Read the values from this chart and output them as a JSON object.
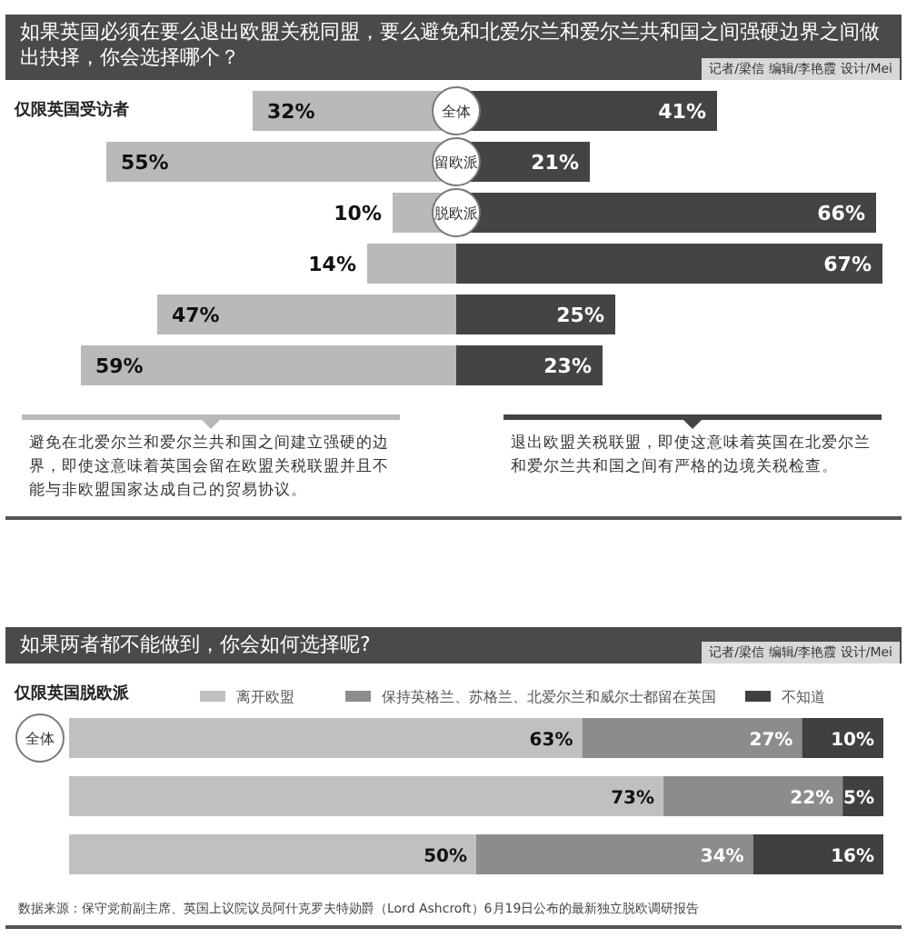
{
  "chart_data": [
    {
      "type": "bar",
      "orientation": "horizontal",
      "title": "如果英国必须在要么退出欧盟关税同盟，要么避免和北爱尔兰和爱尔兰共和国之间强硬边界之间做出抉择，你会选择哪个？",
      "subtitle": "仅限英国受访者",
      "annotations": [
        "记者/梁信  编辑/李艳霞  设计/Mei"
      ],
      "legend": "bottom",
      "categories": [
        "全体",
        "留欧派",
        "脱欧派",
        null,
        null,
        null
      ],
      "series": [
        {
          "name": "避免在北爱尔兰和爱尔兰共和国之间建立强硬的边界，即使这意味着英国会留在欧盟关税联盟并且不能与非欧盟国家达成自己的贸易协议。",
          "color": "#b9b9b9",
          "values": [
            32,
            55,
            10,
            14,
            47,
            59
          ],
          "value_labels": [
            "32%",
            "55%",
            "10%",
            "14%",
            "47%",
            "59%"
          ]
        }
      ]
    },
    {
      "type": "bar",
      "orientation": "horizontal",
      "legend": "bottom",
      "categories": [
        null,
        null,
        null,
        null,
        null,
        null
      ],
      "series": [
        {
          "name": "退出欧盟关税联盟，即使这意味着英国在北爱尔兰和爱尔兰共和国之间有严格的边境关税检查。",
          "color": "#444444",
          "values": [
            41,
            21,
            66,
            67,
            25,
            23
          ],
          "value_labels": [
            "41%",
            "21%",
            "66%",
            "67%",
            "25%",
            "23%"
          ]
        }
      ]
    },
    {
      "type": "bar",
      "orientation": "horizontal",
      "stacked": true,
      "title": "如果两者都不能做到，你会如何选择呢?",
      "subtitle": "仅限英国脱欧派",
      "legend": "top",
      "annotations": [
        "记者/梁信  编辑/李艳霞  设计/Mei",
        "数据来源：保守党前副主席、英国上议院议员阿什克罗夫特勋爵（Lord Ashcroft）6月19日公布的最新独立脱欧调研报告"
      ],
      "categories": [
        "全体",
        null,
        null
      ],
      "series": [
        {
          "name": "离开欧盟",
          "color": "#c0c0c0",
          "values": [
            63,
            73,
            50
          ],
          "value_labels": [
            "63%",
            "73%",
            "50%"
          ]
        },
        {
          "name": "保持英格兰、苏格兰、北爱尔兰和威尔士都留在英国",
          "color": "#8c8c8c",
          "values": [
            27,
            22,
            34
          ],
          "value_labels": [
            "27%",
            "22%",
            "34%"
          ]
        },
        {
          "name": "不知道",
          "color": "#404040",
          "values": [
            10,
            5,
            16
          ],
          "value_labels": [
            "10%",
            "5%",
            "16%"
          ]
        }
      ]
    }
  ]
}
